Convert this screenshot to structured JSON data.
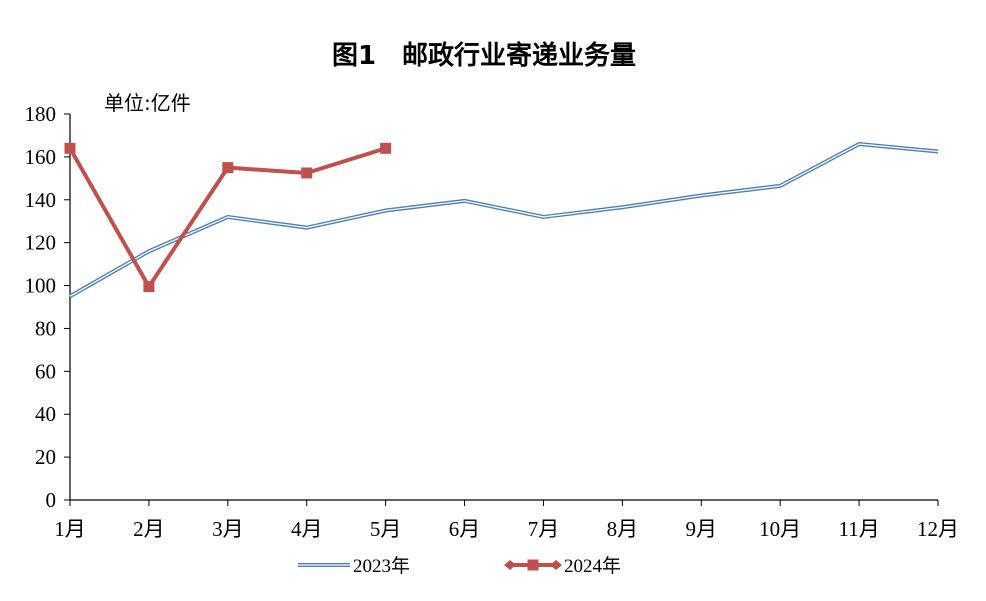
{
  "chart_data": {
    "type": "line",
    "title": "图1　邮政行业寄递业务量",
    "unit_label": "单位:亿件",
    "categories": [
      "1月",
      "2月",
      "3月",
      "4月",
      "5月",
      "6月",
      "7月",
      "8月",
      "9月",
      "10月",
      "11月",
      "12月"
    ],
    "ylim": [
      0,
      180
    ],
    "yticks": [
      "0",
      "20",
      "40",
      "60",
      "80",
      "100",
      "120",
      "140",
      "160",
      "180"
    ],
    "grid": false,
    "legend_position": "bottom",
    "series": [
      {
        "name": "2023年",
        "color": "#4a7ebb",
        "style": "double-line",
        "values": [
          95,
          116,
          132,
          127,
          135,
          139.5,
          132,
          136.5,
          142,
          146.5,
          166,
          162.5
        ]
      },
      {
        "name": "2024年",
        "color": "#c0504d",
        "style": "line-square-markers",
        "values": [
          164,
          99.5,
          155,
          152.5,
          164,
          null,
          null,
          null,
          null,
          null,
          null,
          null
        ]
      }
    ]
  }
}
